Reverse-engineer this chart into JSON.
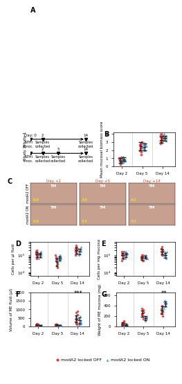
{
  "panel_B": {
    "title": "B",
    "ylabel": "Mean mucosal biomass score",
    "days": [
      "Day 2",
      "Day 5",
      "Day 14"
    ],
    "off_means": [
      0.7,
      2.5,
      3.3
    ],
    "off_errors": [
      0.3,
      0.5,
      0.4
    ],
    "on_means": [
      0.9,
      2.4,
      3.5
    ],
    "on_errors": [
      0.2,
      0.4,
      0.3
    ],
    "off_scatter": [
      [
        0.3,
        0.5,
        0.6,
        0.7,
        0.8,
        0.9,
        1.0,
        1.1,
        0.4,
        0.6
      ],
      [
        1.5,
        2.0,
        2.2,
        2.5,
        2.8,
        3.0,
        2.6,
        2.3,
        1.8,
        2.7
      ],
      [
        2.8,
        3.0,
        3.2,
        3.4,
        3.5,
        3.8,
        4.0,
        3.2,
        3.6,
        3.9
      ]
    ],
    "on_scatter": [
      [
        0.5,
        0.7,
        0.8,
        0.9,
        1.0,
        1.1,
        1.2,
        0.6,
        0.8,
        0.5
      ],
      [
        2.0,
        2.2,
        2.4,
        2.5,
        2.6,
        2.8,
        2.3,
        2.7,
        2.1,
        2.9
      ],
      [
        3.2,
        3.4,
        3.5,
        3.6,
        3.7,
        3.8,
        3.9,
        4.0,
        3.3,
        3.5
      ]
    ],
    "ylim": [
      0,
      4.2
    ],
    "yticks": [
      0,
      1,
      2,
      3,
      4
    ]
  },
  "panel_D": {
    "title": "D",
    "ylabel": "Cells per µl fluid",
    "days": [
      "Day 2",
      "Day 5",
      "Day 14"
    ],
    "off_means_log": [
      5.1,
      4.8,
      5.3
    ],
    "on_means_log": [
      5.1,
      4.9,
      5.3
    ],
    "off_scatter_log": [
      [
        4.8,
        5.0,
        5.1,
        5.2,
        5.3,
        5.0,
        5.1,
        4.9,
        5.2,
        5.1
      ],
      [
        4.3,
        4.6,
        4.8,
        5.0,
        4.7,
        4.9,
        4.5,
        4.4,
        4.6,
        4.8
      ],
      [
        5.0,
        5.1,
        5.2,
        5.3,
        5.4,
        5.5,
        5.6,
        5.3,
        5.4,
        5.2
      ]
    ],
    "on_scatter_log": [
      [
        4.9,
        5.0,
        5.1,
        5.2,
        5.0,
        5.1,
        5.2,
        4.8,
        5.1,
        5.0
      ],
      [
        4.7,
        4.8,
        4.9,
        5.0,
        4.8,
        4.9,
        4.7,
        5.0,
        4.8,
        4.9
      ],
      [
        5.0,
        5.1,
        5.2,
        5.3,
        5.4,
        5.5,
        5.3,
        5.2,
        5.4,
        5.1
      ]
    ],
    "ylim_log": [
      3.8,
      5.8
    ],
    "yticks_log": [
      4,
      5
    ]
  },
  "panel_E": {
    "title": "E",
    "ylabel": "Cells per mg mucosa",
    "days": [
      "Day 2",
      "Day 5",
      "Day 14"
    ],
    "off_scatter_log": [
      [
        4.8,
        5.0,
        5.1,
        5.2,
        5.0,
        5.1,
        4.9,
        5.2,
        4.7,
        5.1
      ],
      [
        4.7,
        4.8,
        4.9,
        5.0,
        4.8,
        4.9,
        4.7,
        5.0,
        4.8,
        4.9
      ],
      [
        5.0,
        5.2,
        5.3,
        5.5,
        5.4,
        5.3,
        5.1,
        5.2,
        5.4,
        5.0
      ]
    ],
    "on_scatter_log": [
      [
        5.0,
        5.1,
        5.2,
        5.0,
        5.1,
        4.9,
        5.2,
        5.0,
        4.8,
        5.1
      ],
      [
        4.8,
        4.9,
        5.0,
        4.9,
        4.8,
        5.0,
        4.9,
        4.8,
        4.9,
        5.0
      ],
      [
        4.9,
        5.0,
        5.1,
        5.2,
        5.0,
        5.1,
        4.8,
        5.0,
        5.2,
        4.9
      ]
    ],
    "ylim_log": [
      3.8,
      5.8
    ],
    "yticks_log": [
      4,
      5
    ]
  },
  "panel_F": {
    "title": "F",
    "ylabel": "Volume of ME fluid (µl)",
    "days": [
      "Day 2",
      "Day 5",
      "Day 14"
    ],
    "off_scatter": [
      [
        50,
        80,
        100,
        120,
        150,
        80,
        100,
        60,
        90,
        110
      ],
      [
        80,
        100,
        120,
        90,
        110,
        95,
        105,
        85,
        95,
        100
      ],
      [
        100,
        200,
        300,
        400,
        500,
        600,
        700,
        800,
        900,
        350,
        450,
        150
      ]
    ],
    "on_scatter": [
      [
        40,
        60,
        70,
        80,
        90,
        50,
        65,
        55,
        75,
        60
      ],
      [
        50,
        70,
        80,
        60,
        90,
        75,
        65,
        80,
        70,
        60
      ],
      [
        50,
        100,
        200,
        300,
        400,
        500,
        600,
        700,
        150,
        250,
        350,
        80
      ]
    ],
    "off_means": [
      90,
      95,
      450
    ],
    "on_means": [
      65,
      72,
      350
    ],
    "off_errors": [
      30,
      20,
      200
    ],
    "on_errors": [
      20,
      15,
      180
    ],
    "ylim": [
      0,
      2000
    ],
    "yticks": [
      0,
      500,
      1000,
      1500,
      2000
    ],
    "sig_day14": "***"
  },
  "panel_G": {
    "title": "G",
    "ylabel": "Weight of ME mucosa (mg)",
    "days": [
      "Day 2",
      "Day 5",
      "Day 14"
    ],
    "off_scatter": [
      [
        20,
        40,
        60,
        80,
        100,
        50,
        30,
        70,
        45,
        55
      ],
      [
        150,
        200,
        250,
        300,
        350,
        220,
        280,
        180,
        260,
        320
      ],
      [
        200,
        250,
        300,
        350,
        400,
        280,
        330,
        250,
        380,
        310
      ]
    ],
    "on_scatter": [
      [
        10,
        20,
        30,
        40,
        50,
        15,
        25,
        35,
        22,
        42
      ],
      [
        100,
        150,
        200,
        180,
        160,
        140,
        190,
        170,
        145,
        165
      ],
      [
        350,
        400,
        450,
        500,
        420,
        380,
        470,
        440,
        390,
        460
      ]
    ],
    "off_means": [
      52,
      250,
      310
    ],
    "on_means": [
      28,
      163,
      430
    ],
    "off_errors": [
      30,
      60,
      70
    ],
    "on_errors": [
      18,
      40,
      50
    ],
    "ylim": [
      0,
      650
    ],
    "yticks": [
      0,
      200,
      400,
      600
    ],
    "sig_day14": "**"
  },
  "colors": {
    "off_color": "#d94040",
    "on_color": "#5b9bd5",
    "off_fill": "#d94040",
    "on_fill": "#5b9bd5",
    "mean_color": "#222222",
    "grid_color": "#cccccc"
  },
  "legend": {
    "off_label": "modA2 locked OFF",
    "on_label": "modA2 locked ON"
  }
}
